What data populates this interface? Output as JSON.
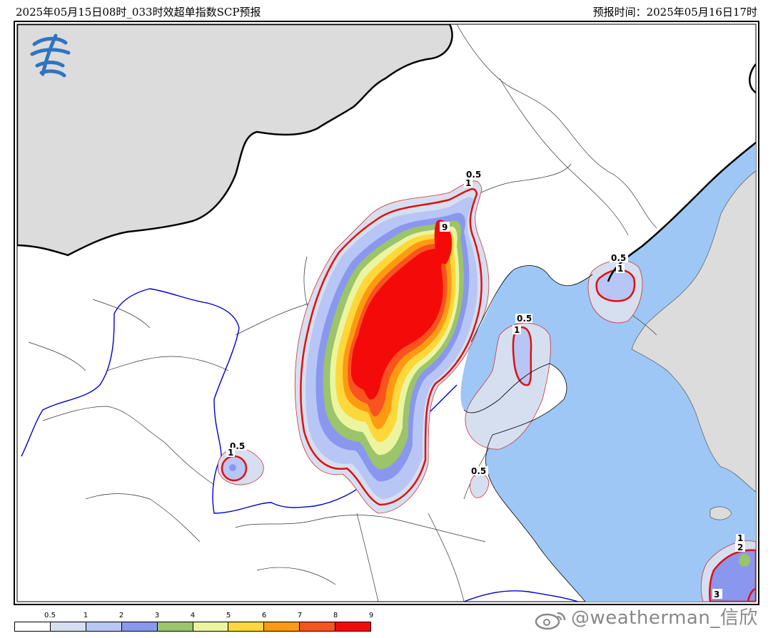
{
  "header": {
    "title": "2025年05月15日08时_033时效超单指数SCP预报",
    "forecast_time": "预报时间：2025年05月16日17时"
  },
  "legend": {
    "ticks": [
      "0.5",
      "1",
      "2",
      "3",
      "4",
      "5",
      "6",
      "7",
      "8",
      "9"
    ],
    "colors": [
      "#ffffff",
      "#d6dff0",
      "#b7c6f5",
      "#8a97ee",
      "#9cc46a",
      "#ebf5a0",
      "#fed83a",
      "#fd9a12",
      "#f9531f",
      "#f50a0a"
    ]
  },
  "contour_labels": [
    "0.5",
    "1",
    "9",
    "0.5",
    "1",
    "0.5",
    "1",
    "0.5",
    "1",
    "0.5",
    "2",
    "1",
    "3"
  ],
  "watermark": "@weatherman_信欣",
  "colors": {
    "land": "#ffffff",
    "sea": "#9ec7f5",
    "foreign": "#dcdcdc",
    "border": "#000000",
    "river": "#0000cc",
    "contour": "#e01010"
  }
}
